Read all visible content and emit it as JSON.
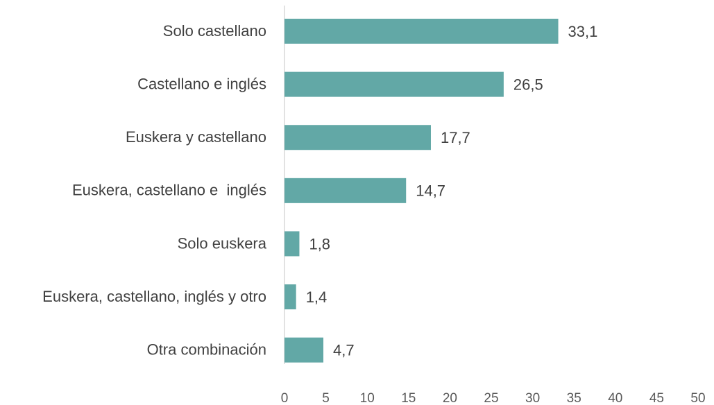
{
  "chart_data": {
    "type": "bar",
    "orientation": "horizontal",
    "categories": [
      "Solo castellano",
      "Castellano e inglés",
      "Euskera y castellano",
      "Euskera, castellano e  inglés",
      "Solo euskera",
      "Euskera, castellano, inglés y otro",
      "Otra combinación"
    ],
    "values": [
      33.1,
      26.5,
      17.7,
      14.7,
      1.8,
      1.4,
      4.7
    ],
    "value_labels": [
      "33,1",
      "26,5",
      "17,7",
      "14,7",
      "1,8",
      "1,4",
      "4,7"
    ],
    "color": "#62a8a6",
    "xlim": [
      0,
      50
    ],
    "xticks": [
      0,
      5,
      10,
      15,
      20,
      25,
      30,
      35,
      40,
      45,
      50
    ],
    "grid": false
  }
}
